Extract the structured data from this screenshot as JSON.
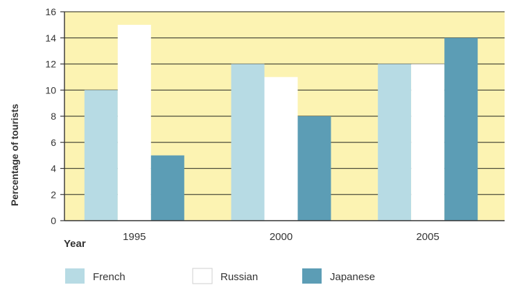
{
  "chart_data": {
    "type": "bar",
    "categories": [
      "1995",
      "2000",
      "2005"
    ],
    "series": [
      {
        "name": "French",
        "values": [
          10,
          12,
          12
        ],
        "color": "#b7dbe4"
      },
      {
        "name": "Russian",
        "values": [
          15,
          11,
          12
        ],
        "color": "#ffffff"
      },
      {
        "name": "Japanese",
        "values": [
          5,
          8,
          14
        ],
        "color": "#5c9db5"
      }
    ],
    "ylabel": "Percentage of tourists",
    "xlabel": "Year",
    "ylim": [
      0,
      16
    ],
    "yticks": [
      0,
      2,
      4,
      6,
      8,
      10,
      12,
      14,
      16
    ],
    "grid": true,
    "legend": "bottom",
    "background_color": "#fcf3b2"
  }
}
